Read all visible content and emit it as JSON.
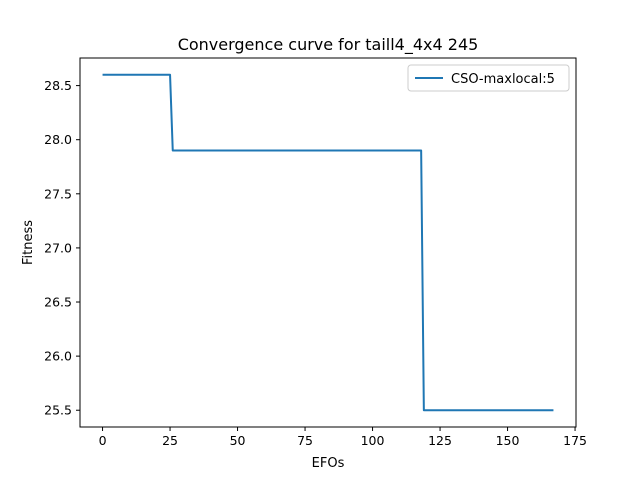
{
  "chart_data": {
    "type": "line",
    "title": "Convergence curve for taill4_4x4 245",
    "xlabel": "EFOs",
    "ylabel": "Fitness",
    "xlim": [
      -8.35,
      175.35
    ],
    "ylim": [
      25.345,
      28.755
    ],
    "xticks": [
      0,
      25,
      50,
      75,
      100,
      125,
      150,
      175
    ],
    "yticks": [
      25.5,
      26.0,
      26.5,
      27.0,
      27.5,
      28.0,
      28.5
    ],
    "xtick_labels": [
      "0",
      "25",
      "50",
      "75",
      "100",
      "125",
      "150",
      "175"
    ],
    "ytick_labels": [
      "25.5",
      "26.0",
      "26.5",
      "27.0",
      "27.5",
      "28.0",
      "28.5"
    ],
    "grid": false,
    "legend_position": "top-right",
    "series": [
      {
        "name": "CSO-maxlocal:5",
        "color": "#1f77b4",
        "x": [
          0,
          25,
          26,
          118,
          119,
          167
        ],
        "y": [
          28.6,
          28.6,
          27.9,
          27.9,
          25.5,
          25.5
        ]
      }
    ]
  }
}
